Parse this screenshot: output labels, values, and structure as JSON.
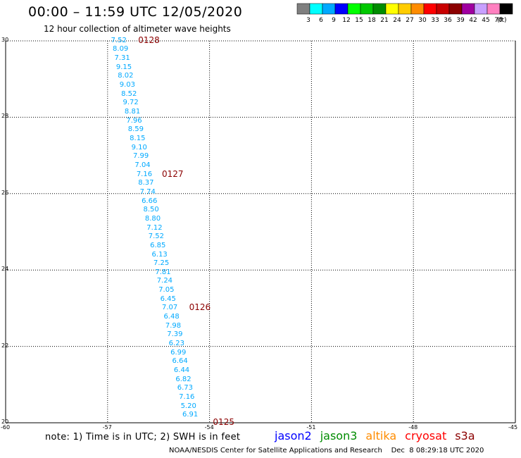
{
  "header": {
    "title": "00:00 – 11:59 UTC 12/05/2020",
    "subtitle": "12 hour collection of altimeter wave heights"
  },
  "legend": {
    "unit": "(ft)",
    "bins": [
      {
        "label": "3",
        "color": "#7f7f7f"
      },
      {
        "label": "6",
        "color": "#00ffff"
      },
      {
        "label": "9",
        "color": "#00a9ff"
      },
      {
        "label": "12",
        "color": "#0000ff"
      },
      {
        "label": "15",
        "color": "#00ff00"
      },
      {
        "label": "18",
        "color": "#00c800"
      },
      {
        "label": "21",
        "color": "#008c00"
      },
      {
        "label": "24",
        "color": "#ffff00"
      },
      {
        "label": "27",
        "color": "#ffcc00"
      },
      {
        "label": "30",
        "color": "#ff8c00"
      },
      {
        "label": "33",
        "color": "#ff0000"
      },
      {
        "label": "36",
        "color": "#c80000"
      },
      {
        "label": "39",
        "color": "#8b0000"
      },
      {
        "label": "42",
        "color": "#a000a0"
      },
      {
        "label": "45",
        "color": "#c8a0ff"
      },
      {
        "label": "70",
        "color": "#ff80c0"
      },
      {
        "label": "",
        "color": "#000000"
      }
    ]
  },
  "map": {
    "lon_range": [
      -60,
      -45
    ],
    "lat_range": [
      20,
      30
    ],
    "lon_ticks": [
      "-60",
      "-57",
      "-54",
      "-51",
      "-48",
      "-45"
    ],
    "lat_ticks": [
      "30",
      "28",
      "26",
      "24",
      "22",
      "20"
    ],
    "track": [
      {
        "lat": 30.0,
        "lon": -56.9,
        "v": "7.52"
      },
      {
        "lat": 29.77,
        "lon": -56.85,
        "v": "8.09"
      },
      {
        "lat": 29.53,
        "lon": -56.8,
        "v": "7.31"
      },
      {
        "lat": 29.3,
        "lon": -56.75,
        "v": "9.15"
      },
      {
        "lat": 29.07,
        "lon": -56.7,
        "v": "8.02"
      },
      {
        "lat": 28.83,
        "lon": -56.65,
        "v": "9.03"
      },
      {
        "lat": 28.6,
        "lon": -56.6,
        "v": "8.52"
      },
      {
        "lat": 28.37,
        "lon": -56.55,
        "v": "9.72"
      },
      {
        "lat": 28.13,
        "lon": -56.5,
        "v": "8.81"
      },
      {
        "lat": 27.9,
        "lon": -56.45,
        "v": "7.96"
      },
      {
        "lat": 27.67,
        "lon": -56.4,
        "v": "8.59"
      },
      {
        "lat": 27.43,
        "lon": -56.35,
        "v": "8.15"
      },
      {
        "lat": 27.2,
        "lon": -56.3,
        "v": "9.10"
      },
      {
        "lat": 26.97,
        "lon": -56.25,
        "v": "7.99"
      },
      {
        "lat": 26.73,
        "lon": -56.2,
        "v": "7.04"
      },
      {
        "lat": 26.5,
        "lon": -56.15,
        "v": "7.16"
      },
      {
        "lat": 26.27,
        "lon": -56.1,
        "v": "8.37"
      },
      {
        "lat": 26.03,
        "lon": -56.05,
        "v": "7.74"
      },
      {
        "lat": 25.8,
        "lon": -56.0,
        "v": "6.66"
      },
      {
        "lat": 25.57,
        "lon": -55.95,
        "v": "8.50"
      },
      {
        "lat": 25.33,
        "lon": -55.9,
        "v": "8.80"
      },
      {
        "lat": 25.1,
        "lon": -55.85,
        "v": "7.12"
      },
      {
        "lat": 24.87,
        "lon": -55.8,
        "v": "7.52"
      },
      {
        "lat": 24.63,
        "lon": -55.75,
        "v": "6.85"
      },
      {
        "lat": 24.4,
        "lon": -55.7,
        "v": "6.13"
      },
      {
        "lat": 24.17,
        "lon": -55.65,
        "v": "7.25"
      },
      {
        "lat": 23.93,
        "lon": -55.6,
        "v": "7.81"
      },
      {
        "lat": 23.7,
        "lon": -55.55,
        "v": "7.24"
      },
      {
        "lat": 23.47,
        "lon": -55.5,
        "v": "7.05"
      },
      {
        "lat": 23.23,
        "lon": -55.45,
        "v": "6.45"
      },
      {
        "lat": 23.0,
        "lon": -55.4,
        "v": "7.07"
      },
      {
        "lat": 22.77,
        "lon": -55.35,
        "v": "6.48"
      },
      {
        "lat": 22.53,
        "lon": -55.3,
        "v": "7.98"
      },
      {
        "lat": 22.3,
        "lon": -55.25,
        "v": "7.39"
      },
      {
        "lat": 22.07,
        "lon": -55.2,
        "v": "6.23"
      },
      {
        "lat": 21.83,
        "lon": -55.15,
        "v": "6.99"
      },
      {
        "lat": 21.6,
        "lon": -55.1,
        "v": "6.64"
      },
      {
        "lat": 21.37,
        "lon": -55.05,
        "v": "6.44"
      },
      {
        "lat": 21.13,
        "lon": -55.0,
        "v": "6.82"
      },
      {
        "lat": 20.9,
        "lon": -54.95,
        "v": "6.73"
      },
      {
        "lat": 20.67,
        "lon": -54.9,
        "v": "7.16"
      },
      {
        "lat": 20.43,
        "lon": -54.85,
        "v": "5.20"
      },
      {
        "lat": 20.2,
        "lon": -54.8,
        "v": "6.91"
      }
    ],
    "time_tags": [
      {
        "lat": 30.0,
        "lon": -56.1,
        "label": "0128"
      },
      {
        "lat": 26.5,
        "lon": -55.4,
        "label": "0127"
      },
      {
        "lat": 23.0,
        "lon": -54.6,
        "label": "0126"
      },
      {
        "lat": 20.0,
        "lon": -53.9,
        "label": "0125"
      }
    ],
    "track_color": "#00a9ff",
    "tag_color": "#8b0000"
  },
  "footer": {
    "note": "note: 1) Time is in UTC; 2) SWH is in feet",
    "credit": "NOAA/NESDIS Center for Satellite Applications and Research    Dec  8 08:29:18 UTC 2020",
    "satellites": [
      {
        "name": "jason2",
        "color": "#0000ff"
      },
      {
        "name": "jason3",
        "color": "#008c00"
      },
      {
        "name": "altika",
        "color": "#ff8c00"
      },
      {
        "name": "cryosat",
        "color": "#ff0000"
      },
      {
        "name": "s3a",
        "color": "#8b0000"
      }
    ]
  }
}
